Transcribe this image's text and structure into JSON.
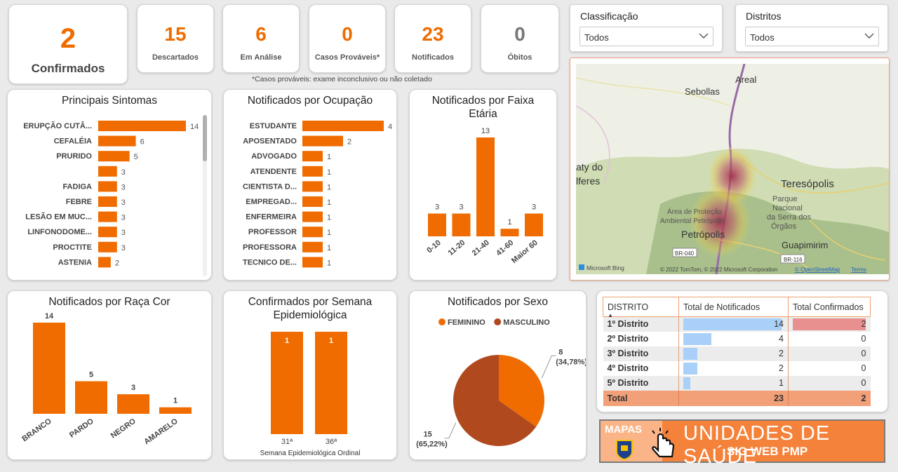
{
  "kpis": {
    "confirmados": {
      "value": "2",
      "label": "Confirmados"
    },
    "descartados": {
      "value": "15",
      "label": "Descartados"
    },
    "em_analise": {
      "value": "6",
      "label": "Em Análise"
    },
    "casos_provaveis": {
      "value": "0",
      "label": "Casos Prováveis*"
    },
    "notificados": {
      "value": "23",
      "label": "Notificados"
    },
    "obitos": {
      "value": "0",
      "label": "Óbitos"
    }
  },
  "footnote": "*Casos prováveis: exame inconclusivo ou não coletado",
  "filters": {
    "classificacao": {
      "label": "Classificação",
      "value": "Todos"
    },
    "distritos": {
      "label": "Distritos",
      "value": "Todos"
    }
  },
  "map": {
    "places": [
      "Sebollas",
      "Areal",
      "aty do",
      "lferes",
      "Teresópolis",
      "Parque",
      "Nacional",
      "da Serra dos",
      "Órgãos",
      "Área de Proteção",
      "Ambiental Petrópolis",
      "Petrópolis",
      "Guapimirim"
    ],
    "road_labels": [
      "BR-040",
      "BR-116"
    ],
    "provider": "Microsoft Bing",
    "attribution": "© 2022 TomTom, © 2022 Microsoft Corporation",
    "osm": "© OpenStreetMap",
    "terms": "Terms"
  },
  "accent": "#f06c00",
  "chart_data": [
    {
      "type": "bar",
      "orientation": "horizontal",
      "title": "Principais Sintomas",
      "categories": [
        "ERUPÇÃO CUTÂ...",
        "CEFALÉIA",
        "PRURIDO",
        "",
        "FADIGA",
        "FEBRE",
        "LESÃO EM MUC...",
        "LINFONODOME...",
        "PROCTITE",
        "ASTENIA"
      ],
      "values": [
        14,
        6,
        5,
        3,
        3,
        3,
        3,
        3,
        3,
        2
      ]
    },
    {
      "type": "bar",
      "orientation": "horizontal",
      "title": "Notificados por Ocupação",
      "categories": [
        "ESTUDANTE",
        "APOSENTADO",
        "ADVOGADO",
        "ATENDENTE",
        "CIENTISTA D...",
        "EMPREGAD...",
        "ENFERMEIRA",
        "PROFESSOR",
        "PROFESSORA",
        "TECNICO DE..."
      ],
      "values": [
        4,
        2,
        1,
        1,
        1,
        1,
        1,
        1,
        1,
        1
      ]
    },
    {
      "type": "bar",
      "title": "Notificados por Faixa Etária",
      "categories": [
        "0-10",
        "11-20",
        "21-40",
        "41-60",
        "Maior 60"
      ],
      "values": [
        3,
        3,
        13,
        1,
        3
      ]
    },
    {
      "type": "bar",
      "title": "Notificados por Raça Cor",
      "categories": [
        "BRANCO",
        "PARDO",
        "NEGRO",
        "AMARELO"
      ],
      "values": [
        14,
        5,
        3,
        1
      ]
    },
    {
      "type": "bar",
      "title": "Confirmados por Semana Epidemiológica",
      "xlabel": "Semana Epidemiológica Ordinal",
      "categories": [
        "31ª",
        "36ª"
      ],
      "values": [
        1,
        1
      ]
    },
    {
      "type": "pie",
      "title": "Notificados por Sexo",
      "series": [
        {
          "name": "FEMININO",
          "value": 8,
          "label": "(34,78%)",
          "color": "#f06c00"
        },
        {
          "name": "MASCULINO",
          "value": 15,
          "label": "(65,22%)",
          "color": "#b0491e"
        }
      ]
    }
  ],
  "district_table": {
    "headers": [
      "DISTRITO",
      "Total de Notificados",
      "Total Confirmados"
    ],
    "rows": [
      {
        "name": "1º Distrito",
        "notificados": 14,
        "confirmados": 2
      },
      {
        "name": "2º Distrito",
        "notificados": 4,
        "confirmados": 0
      },
      {
        "name": "3º Distrito",
        "notificados": 2,
        "confirmados": 0
      },
      {
        "name": "4º Distrito",
        "notificados": 2,
        "confirmados": 0
      },
      {
        "name": "5º Distrito",
        "notificados": 1,
        "confirmados": 0
      }
    ],
    "total": {
      "name": "Total",
      "notificados": "23",
      "confirmados": "2"
    }
  },
  "banner": {
    "mapas": "MAPAS",
    "title": "UNIDADES DE SAÚDE",
    "subtitle": "SIG WEB PMP"
  }
}
